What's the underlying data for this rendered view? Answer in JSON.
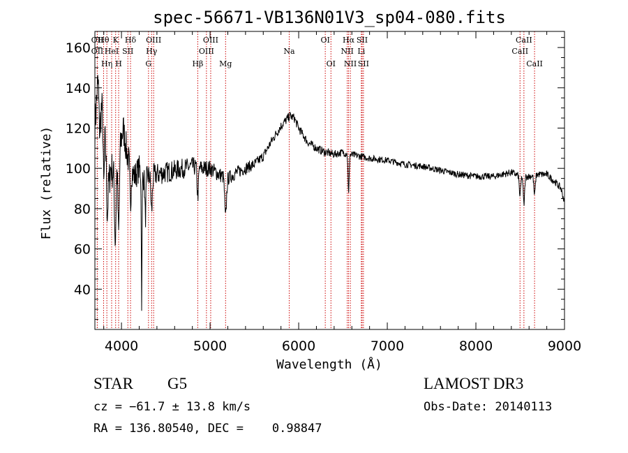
{
  "chart_data": {
    "type": "line",
    "title": "spec-56671-VB136N01V3_sp04-080.fits",
    "xlabel": "Wavelength (Å)",
    "ylabel": "Flux (relative)",
    "xlim": [
      3700,
      9000
    ],
    "ylim": [
      20,
      168
    ],
    "x_ticks": [
      4000,
      5000,
      6000,
      7000,
      8000,
      9000
    ],
    "y_ticks": [
      40,
      60,
      80,
      100,
      120,
      140,
      160
    ],
    "spectrum_anchors": [
      [
        3700,
        120
      ],
      [
        3720,
        135
      ],
      [
        3740,
        160
      ],
      [
        3760,
        140
      ],
      [
        3790,
        125
      ],
      [
        3830,
        108
      ],
      [
        3860,
        105
      ],
      [
        3900,
        98
      ],
      [
        3940,
        100
      ],
      [
        3980,
        110
      ],
      [
        4020,
        120
      ],
      [
        4060,
        108
      ],
      [
        4100,
        100
      ],
      [
        4150,
        96
      ],
      [
        4200,
        100
      ],
      [
        4250,
        95
      ],
      [
        4300,
        96
      ],
      [
        4400,
        97
      ],
      [
        4500,
        98
      ],
      [
        4600,
        99
      ],
      [
        4700,
        100
      ],
      [
        4800,
        101
      ],
      [
        4900,
        100
      ],
      [
        5000,
        100
      ],
      [
        5100,
        97
      ],
      [
        5200,
        95
      ],
      [
        5300,
        98
      ],
      [
        5400,
        100
      ],
      [
        5500,
        102
      ],
      [
        5600,
        106
      ],
      [
        5700,
        114
      ],
      [
        5800,
        121
      ],
      [
        5900,
        126
      ],
      [
        5950,
        125
      ],
      [
        6000,
        120
      ],
      [
        6100,
        113
      ],
      [
        6200,
        110
      ],
      [
        6300,
        108
      ],
      [
        6400,
        107
      ],
      [
        6500,
        108
      ],
      [
        6560,
        107
      ],
      [
        6700,
        106
      ],
      [
        6800,
        105
      ],
      [
        7000,
        104
      ],
      [
        7200,
        102
      ],
      [
        7400,
        101
      ],
      [
        7600,
        99
      ],
      [
        7800,
        97
      ],
      [
        8000,
        96
      ],
      [
        8200,
        96
      ],
      [
        8400,
        98
      ],
      [
        8500,
        96
      ],
      [
        8600,
        96
      ],
      [
        8700,
        97
      ],
      [
        8800,
        97
      ],
      [
        8900,
        93
      ],
      [
        8960,
        90
      ],
      [
        9000,
        83
      ]
    ],
    "absorption_dips": [
      [
        3750,
        12,
        28
      ],
      [
        3800,
        6,
        30
      ],
      [
        3840,
        8,
        28
      ],
      [
        3860,
        10,
        10
      ],
      [
        3930,
        8,
        35
      ],
      [
        3968,
        8,
        40
      ],
      [
        4101,
        6,
        20
      ],
      [
        4228,
        4,
        62
      ],
      [
        4270,
        6,
        20
      ],
      [
        4340,
        8,
        18
      ],
      [
        4861,
        8,
        14
      ],
      [
        5175,
        10,
        20
      ],
      [
        6563,
        6,
        20
      ],
      [
        8498,
        8,
        10
      ],
      [
        8542,
        8,
        14
      ],
      [
        8662,
        8,
        10
      ]
    ],
    "noise_amplitude": [
      [
        3700,
        11
      ],
      [
        4300,
        6
      ],
      [
        5600,
        2.5
      ],
      [
        7000,
        1.6
      ],
      [
        9000,
        1.8
      ]
    ],
    "emission_lines": [
      {
        "wave": 3727,
        "label": "OII",
        "row": 2
      },
      {
        "wave": 3727,
        "label": "OII",
        "row": 4
      },
      {
        "wave": 3798,
        "label": "Hθ",
        "row": 1
      },
      {
        "wave": 3835,
        "label": "Hη",
        "row": 3
      },
      {
        "wave": 3889,
        "label": "HeI",
        "row": 2
      },
      {
        "wave": 3934,
        "label": "K",
        "row": 1
      },
      {
        "wave": 3968,
        "label": "H",
        "row": 3
      },
      {
        "wave": 4072,
        "label": "SII",
        "row": 2
      },
      {
        "wave": 4102,
        "label": "Hδ",
        "row": 1
      },
      {
        "wave": 4305,
        "label": "G",
        "row": 3
      },
      {
        "wave": 4340,
        "label": "Hγ",
        "row": 2
      },
      {
        "wave": 4363,
        "label": "OIII",
        "row": 1
      },
      {
        "wave": 4861,
        "label": "Hβ",
        "row": 3
      },
      {
        "wave": 4959,
        "label": "OIII",
        "row": 2
      },
      {
        "wave": 5007,
        "label": "OIII",
        "row": 1
      },
      {
        "wave": 5175,
        "label": "Mg",
        "row": 3
      },
      {
        "wave": 5893,
        "label": "Na",
        "row": 2
      },
      {
        "wave": 6300,
        "label": "OI",
        "row": 1
      },
      {
        "wave": 6364,
        "label": "OI",
        "row": 3
      },
      {
        "wave": 6548,
        "label": "NII",
        "row": 2
      },
      {
        "wave": 6563,
        "label": "Hα",
        "row": 1
      },
      {
        "wave": 6583,
        "label": "NII",
        "row": 3
      },
      {
        "wave": 6707,
        "label": "Li",
        "row": 2
      },
      {
        "wave": 6716,
        "label": "SII",
        "row": 1
      },
      {
        "wave": 6731,
        "label": "SII",
        "row": 3
      },
      {
        "wave": 8498,
        "label": "CaII",
        "row": 2
      },
      {
        "wave": 8542,
        "label": "CaII",
        "row": 1
      },
      {
        "wave": 8662,
        "label": "CaII",
        "row": 3
      }
    ],
    "colors": {
      "spectrum": "#000000",
      "line_marker": "#cc0000",
      "axes": "#000000"
    }
  },
  "info": {
    "object_class": "STAR",
    "subclass": "G5",
    "survey": "LAMOST DR3",
    "redshift": "cz = −61.7 ± 13.8 km/s",
    "obs_date": "Obs-Date: 20140113",
    "coords": "RA = 136.80540, DEC =    0.98847"
  }
}
